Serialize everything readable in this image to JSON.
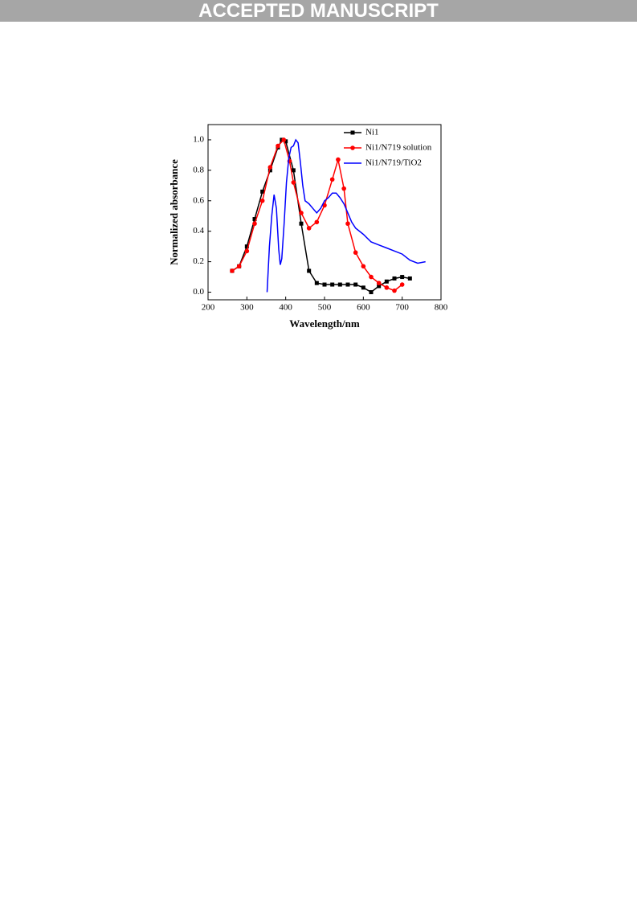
{
  "banner": "ACCEPTED MANUSCRIPT",
  "chart_data": {
    "type": "line",
    "xlabel": "Wavelength/nm",
    "ylabel": "Normalized absorbance",
    "xlim": [
      200,
      800
    ],
    "xticks": [
      200,
      300,
      400,
      500,
      600,
      700,
      800
    ],
    "ylim": [
      -0.05,
      1.1
    ],
    "yticks": [
      {
        "value": 0,
        "label": "0.0"
      },
      0.2,
      0.4,
      0.6,
      0.8,
      {
        "value": 1,
        "label": "1.0"
      }
    ],
    "legend": "upper right",
    "series": [
      {
        "name": "Ni1",
        "color": "#000000",
        "marker": "square",
        "x": [
          262,
          280,
          300,
          320,
          340,
          360,
          380,
          390,
          400,
          420,
          440,
          460,
          480,
          500,
          520,
          540,
          560,
          580,
          600,
          620,
          640,
          660,
          680,
          700,
          720
        ],
        "values": [
          0.14,
          0.17,
          0.3,
          0.48,
          0.66,
          0.8,
          0.95,
          1.0,
          0.99,
          0.8,
          0.45,
          0.14,
          0.06,
          0.05,
          0.05,
          0.05,
          0.05,
          0.05,
          0.03,
          0.0,
          0.04,
          0.07,
          0.09,
          0.1,
          0.09
        ]
      },
      {
        "name": "Ni1/N719 solution",
        "color": "#ff0000",
        "marker": "circle",
        "x": [
          262,
          280,
          300,
          320,
          340,
          360,
          380,
          395,
          410,
          420,
          440,
          460,
          480,
          500,
          520,
          535,
          550,
          560,
          580,
          600,
          620,
          640,
          660,
          680,
          700
        ],
        "values": [
          0.14,
          0.17,
          0.27,
          0.45,
          0.6,
          0.82,
          0.96,
          1.0,
          0.86,
          0.72,
          0.52,
          0.42,
          0.46,
          0.57,
          0.74,
          0.87,
          0.68,
          0.45,
          0.26,
          0.17,
          0.1,
          0.06,
          0.03,
          0.01,
          0.05
        ]
      },
      {
        "name": "Ni1/N719/TiO2",
        "color": "#0000ff",
        "marker": "none",
        "x": [
          352,
          358,
          364,
          370,
          376,
          382,
          386,
          390,
          396,
          402,
          408,
          414,
          420,
          426,
          432,
          438,
          444,
          450,
          460,
          470,
          480,
          490,
          500,
          510,
          520,
          530,
          540,
          550,
          560,
          570,
          580,
          600,
          620,
          640,
          660,
          680,
          700,
          720,
          740,
          760
        ],
        "values": [
          0.0,
          0.3,
          0.5,
          0.64,
          0.55,
          0.28,
          0.18,
          0.22,
          0.45,
          0.72,
          0.88,
          0.95,
          0.96,
          1.0,
          0.98,
          0.85,
          0.7,
          0.6,
          0.58,
          0.55,
          0.52,
          0.55,
          0.6,
          0.62,
          0.65,
          0.65,
          0.62,
          0.58,
          0.52,
          0.46,
          0.42,
          0.38,
          0.33,
          0.31,
          0.29,
          0.27,
          0.25,
          0.21,
          0.19,
          0.2
        ]
      }
    ]
  }
}
